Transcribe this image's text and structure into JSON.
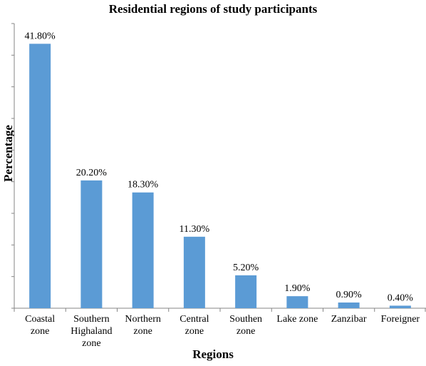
{
  "chart_data": {
    "type": "bar",
    "title": "Residential regions of study participants",
    "xlabel": "Regions",
    "ylabel": "Percentage",
    "categories": [
      [
        "Coastal",
        "zone"
      ],
      [
        "Southern",
        "Highaland",
        "zone"
      ],
      [
        "Northern",
        "zone"
      ],
      [
        "Central",
        "zone"
      ],
      [
        "Southen",
        "zone"
      ],
      [
        "Lake zone"
      ],
      [
        "Zanzibar"
      ],
      [
        "Foreigner"
      ]
    ],
    "values": [
      41.8,
      20.2,
      18.3,
      11.3,
      5.2,
      1.9,
      0.9,
      0.4
    ],
    "data_labels": [
      "41.80%",
      "20.20%",
      "18.30%",
      "11.30%",
      "5.20%",
      "1.90%",
      "0.90%",
      "0.40%"
    ],
    "ylim": [
      0,
      45
    ],
    "y_tick_labels_shown": false,
    "grid": false,
    "bar_color": "#5b9bd5"
  }
}
